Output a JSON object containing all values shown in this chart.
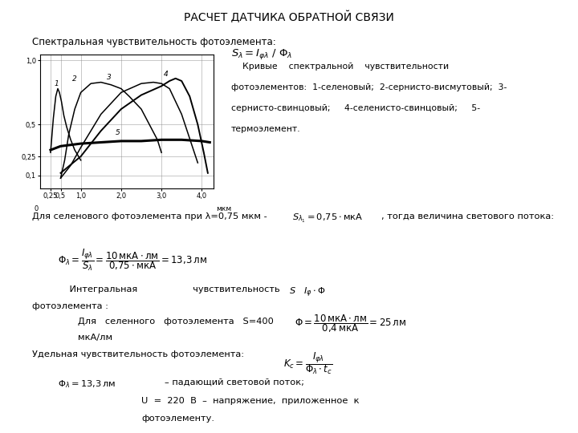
{
  "title": "РАСЧЕТ ДАТЧИКА ОБРАТНОЙ СВЯЗИ",
  "subtitle": "Спектральная чувствительность фотоэлемента:",
  "xlabel": "мкм",
  "xlim": [
    0,
    4.3
  ],
  "ylim": [
    0,
    1.05
  ],
  "xtick_vals": [
    0.25,
    0.5,
    1.0,
    2.0,
    3.0,
    4.0
  ],
  "xtick_labels": [
    "0,25",
    "0,5",
    "1,0",
    "2,0",
    "3,0",
    "4,0"
  ],
  "ytick_vals": [
    0.1,
    0.25,
    0.5,
    1.0
  ],
  "ytick_labels": [
    "0,1",
    "0,25",
    "0,5",
    "1,0"
  ],
  "curve1_x": [
    0.25,
    0.32,
    0.38,
    0.43,
    0.47,
    0.52,
    0.58,
    0.65,
    0.75,
    0.85,
    1.0
  ],
  "curve1_y": [
    0.28,
    0.55,
    0.72,
    0.78,
    0.75,
    0.68,
    0.57,
    0.48,
    0.38,
    0.3,
    0.22
  ],
  "curve2_x": [
    0.5,
    0.6,
    0.7,
    0.85,
    1.0,
    1.25,
    1.5,
    1.75,
    2.0,
    2.2,
    2.5,
    2.7,
    2.9,
    3.0
  ],
  "curve2_y": [
    0.08,
    0.22,
    0.42,
    0.62,
    0.75,
    0.82,
    0.83,
    0.81,
    0.78,
    0.72,
    0.62,
    0.5,
    0.38,
    0.28
  ],
  "curve3_x": [
    0.5,
    0.75,
    1.0,
    1.5,
    2.0,
    2.5,
    2.8,
    3.0,
    3.2,
    3.5,
    3.9
  ],
  "curve3_y": [
    0.08,
    0.18,
    0.32,
    0.58,
    0.75,
    0.82,
    0.83,
    0.82,
    0.78,
    0.58,
    0.2
  ],
  "curve4_x": [
    0.5,
    1.0,
    1.5,
    2.0,
    2.5,
    3.0,
    3.2,
    3.35,
    3.5,
    3.7,
    3.9,
    4.05,
    4.15
  ],
  "curve4_y": [
    0.12,
    0.25,
    0.45,
    0.62,
    0.73,
    0.8,
    0.84,
    0.86,
    0.84,
    0.72,
    0.5,
    0.28,
    0.12
  ],
  "curve5_x": [
    0.25,
    0.5,
    1.0,
    1.5,
    2.0,
    2.5,
    3.0,
    3.5,
    4.0,
    4.2
  ],
  "curve5_y": [
    0.3,
    0.33,
    0.35,
    0.36,
    0.37,
    0.37,
    0.38,
    0.38,
    0.37,
    0.36
  ],
  "background_color": "#ffffff",
  "text_color": "#000000"
}
